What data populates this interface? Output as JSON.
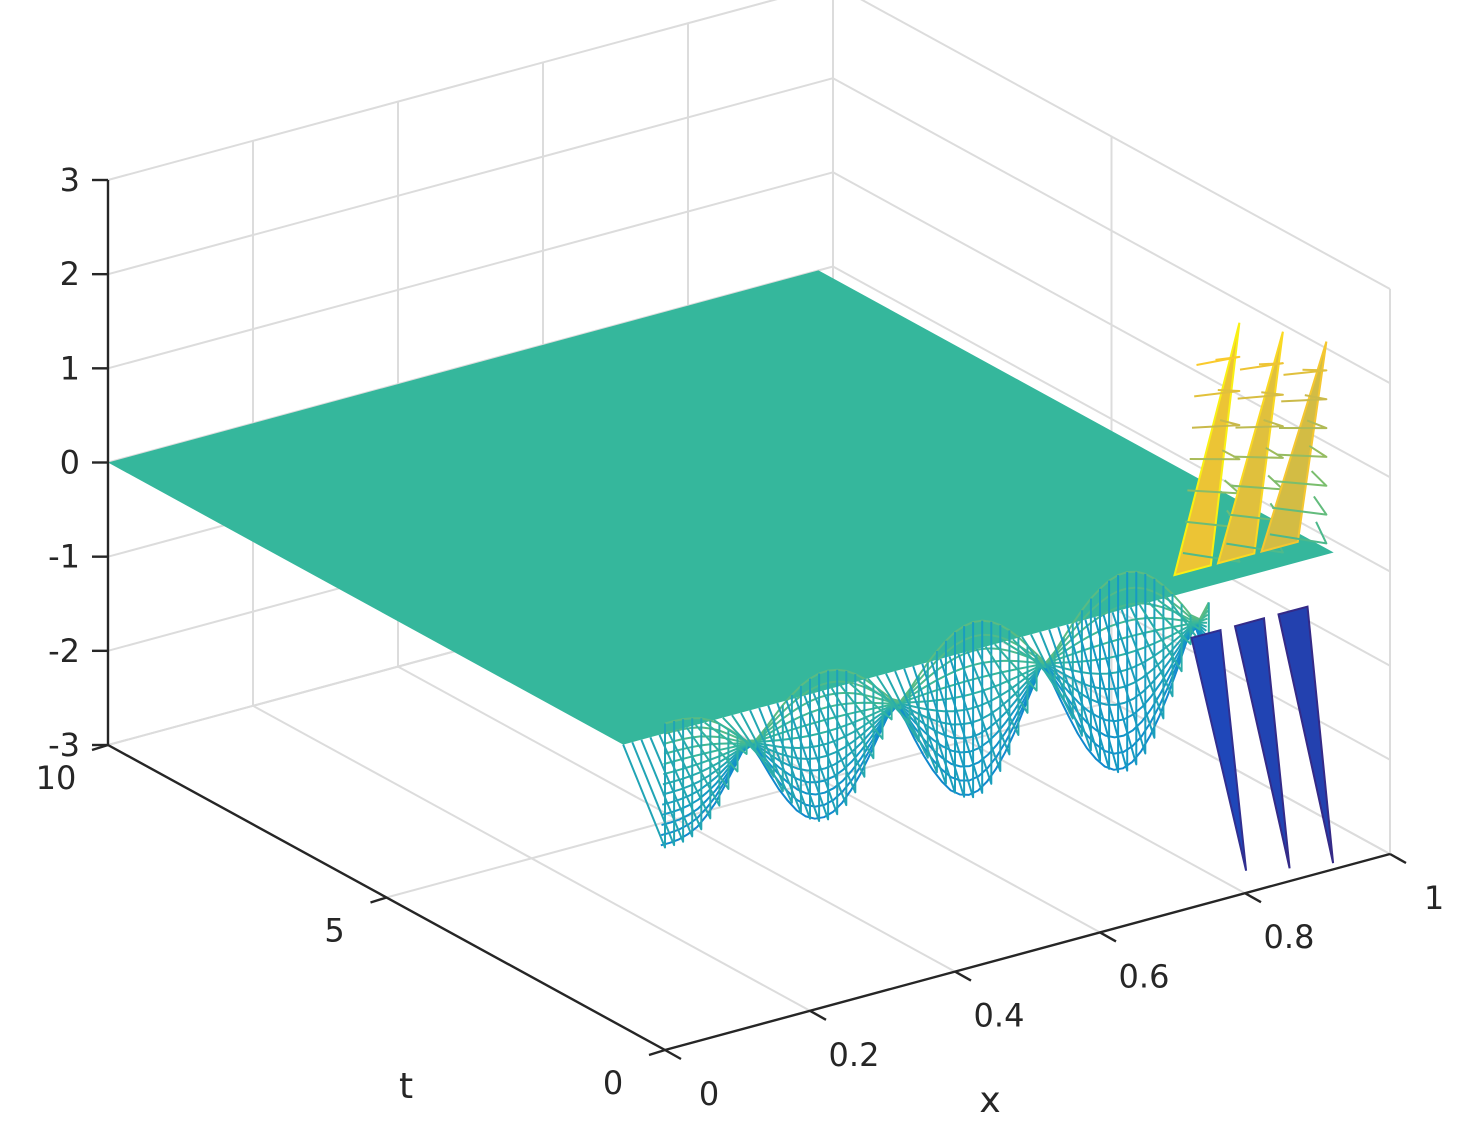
{
  "chart_data": {
    "type": "surface",
    "title": "",
    "xlabel": "x",
    "ylabel": "t",
    "zlabel": "",
    "xlim": [
      0,
      1
    ],
    "ylim": [
      0,
      10
    ],
    "zlim": [
      -3,
      3
    ],
    "xticks": [
      0,
      0.2,
      0.4,
      0.6,
      0.8,
      1
    ],
    "xtick_labels": [
      "0",
      "0.2",
      "0.4",
      "0.6",
      "0.8",
      "1"
    ],
    "yticks": [
      0,
      5,
      10
    ],
    "ytick_labels": [
      "0",
      "5",
      "10"
    ],
    "zticks": [
      -3,
      -2,
      -1,
      0,
      1,
      2,
      3
    ],
    "ztick_labels": [
      "-3",
      "-2",
      "-1",
      "0",
      "1",
      "2",
      "3"
    ],
    "grid": true,
    "colormap": "parula",
    "plane": {
      "t_range": [
        0,
        10
      ],
      "x_range": [
        0,
        0.98
      ],
      "z": 0,
      "color": "#35b79c"
    },
    "wave_profile": {
      "x": [
        0,
        0.0125,
        0.025,
        0.0375,
        0.05,
        0.0625,
        0.075,
        0.0875,
        0.1,
        0.1125,
        0.125,
        0.1375,
        0.15,
        0.1625,
        0.175,
        0.1875,
        0.2,
        0.2125,
        0.225,
        0.2375,
        0.25,
        0.2625,
        0.275,
        0.2875,
        0.3,
        0.3125,
        0.325,
        0.3375,
        0.35,
        0.3625,
        0.375,
        0.3875,
        0.4,
        0.4125,
        0.425,
        0.4375,
        0.45,
        0.4625,
        0.475,
        0.4875,
        0.5,
        0.5125,
        0.525,
        0.5375,
        0.55,
        0.5625,
        0.575,
        0.5875,
        0.6,
        0.6125,
        0.625,
        0.6375,
        0.65,
        0.6625,
        0.675,
        0.6875,
        0.7,
        0.7125,
        0.725,
        0.7375,
        0.75
      ],
      "amplitude": [
        0.85,
        0.85,
        0.84,
        0.81,
        0.76,
        0.67,
        0.56,
        0.41,
        0.25,
        0.09,
        0.05,
        0.22,
        0.41,
        0.59,
        0.74,
        0.87,
        0.96,
        1.01,
        1.02,
        0.99,
        0.92,
        0.81,
        0.67,
        0.5,
        0.32,
        0.14,
        0.05,
        0.23,
        0.45,
        0.65,
        0.83,
        0.98,
        1.1,
        1.17,
        1.2,
        1.18,
        1.11,
        1.0,
        0.85,
        0.67,
        0.46,
        0.25,
        0.03,
        0.2,
        0.43,
        0.65,
        0.86,
        1.04,
        1.18,
        1.29,
        1.35,
        1.36,
        1.32,
        1.23,
        1.09,
        0.91,
        0.7,
        0.46,
        0.2,
        0.07,
        0.35
      ],
      "t": 0
    },
    "spikes": {
      "x": [
        0.82,
        0.88,
        0.94
      ],
      "z_max": [
        2.9,
        2.68,
        2.45
      ],
      "z_min": [
        -2.88,
        -2.98,
        -3.05
      ]
    }
  }
}
